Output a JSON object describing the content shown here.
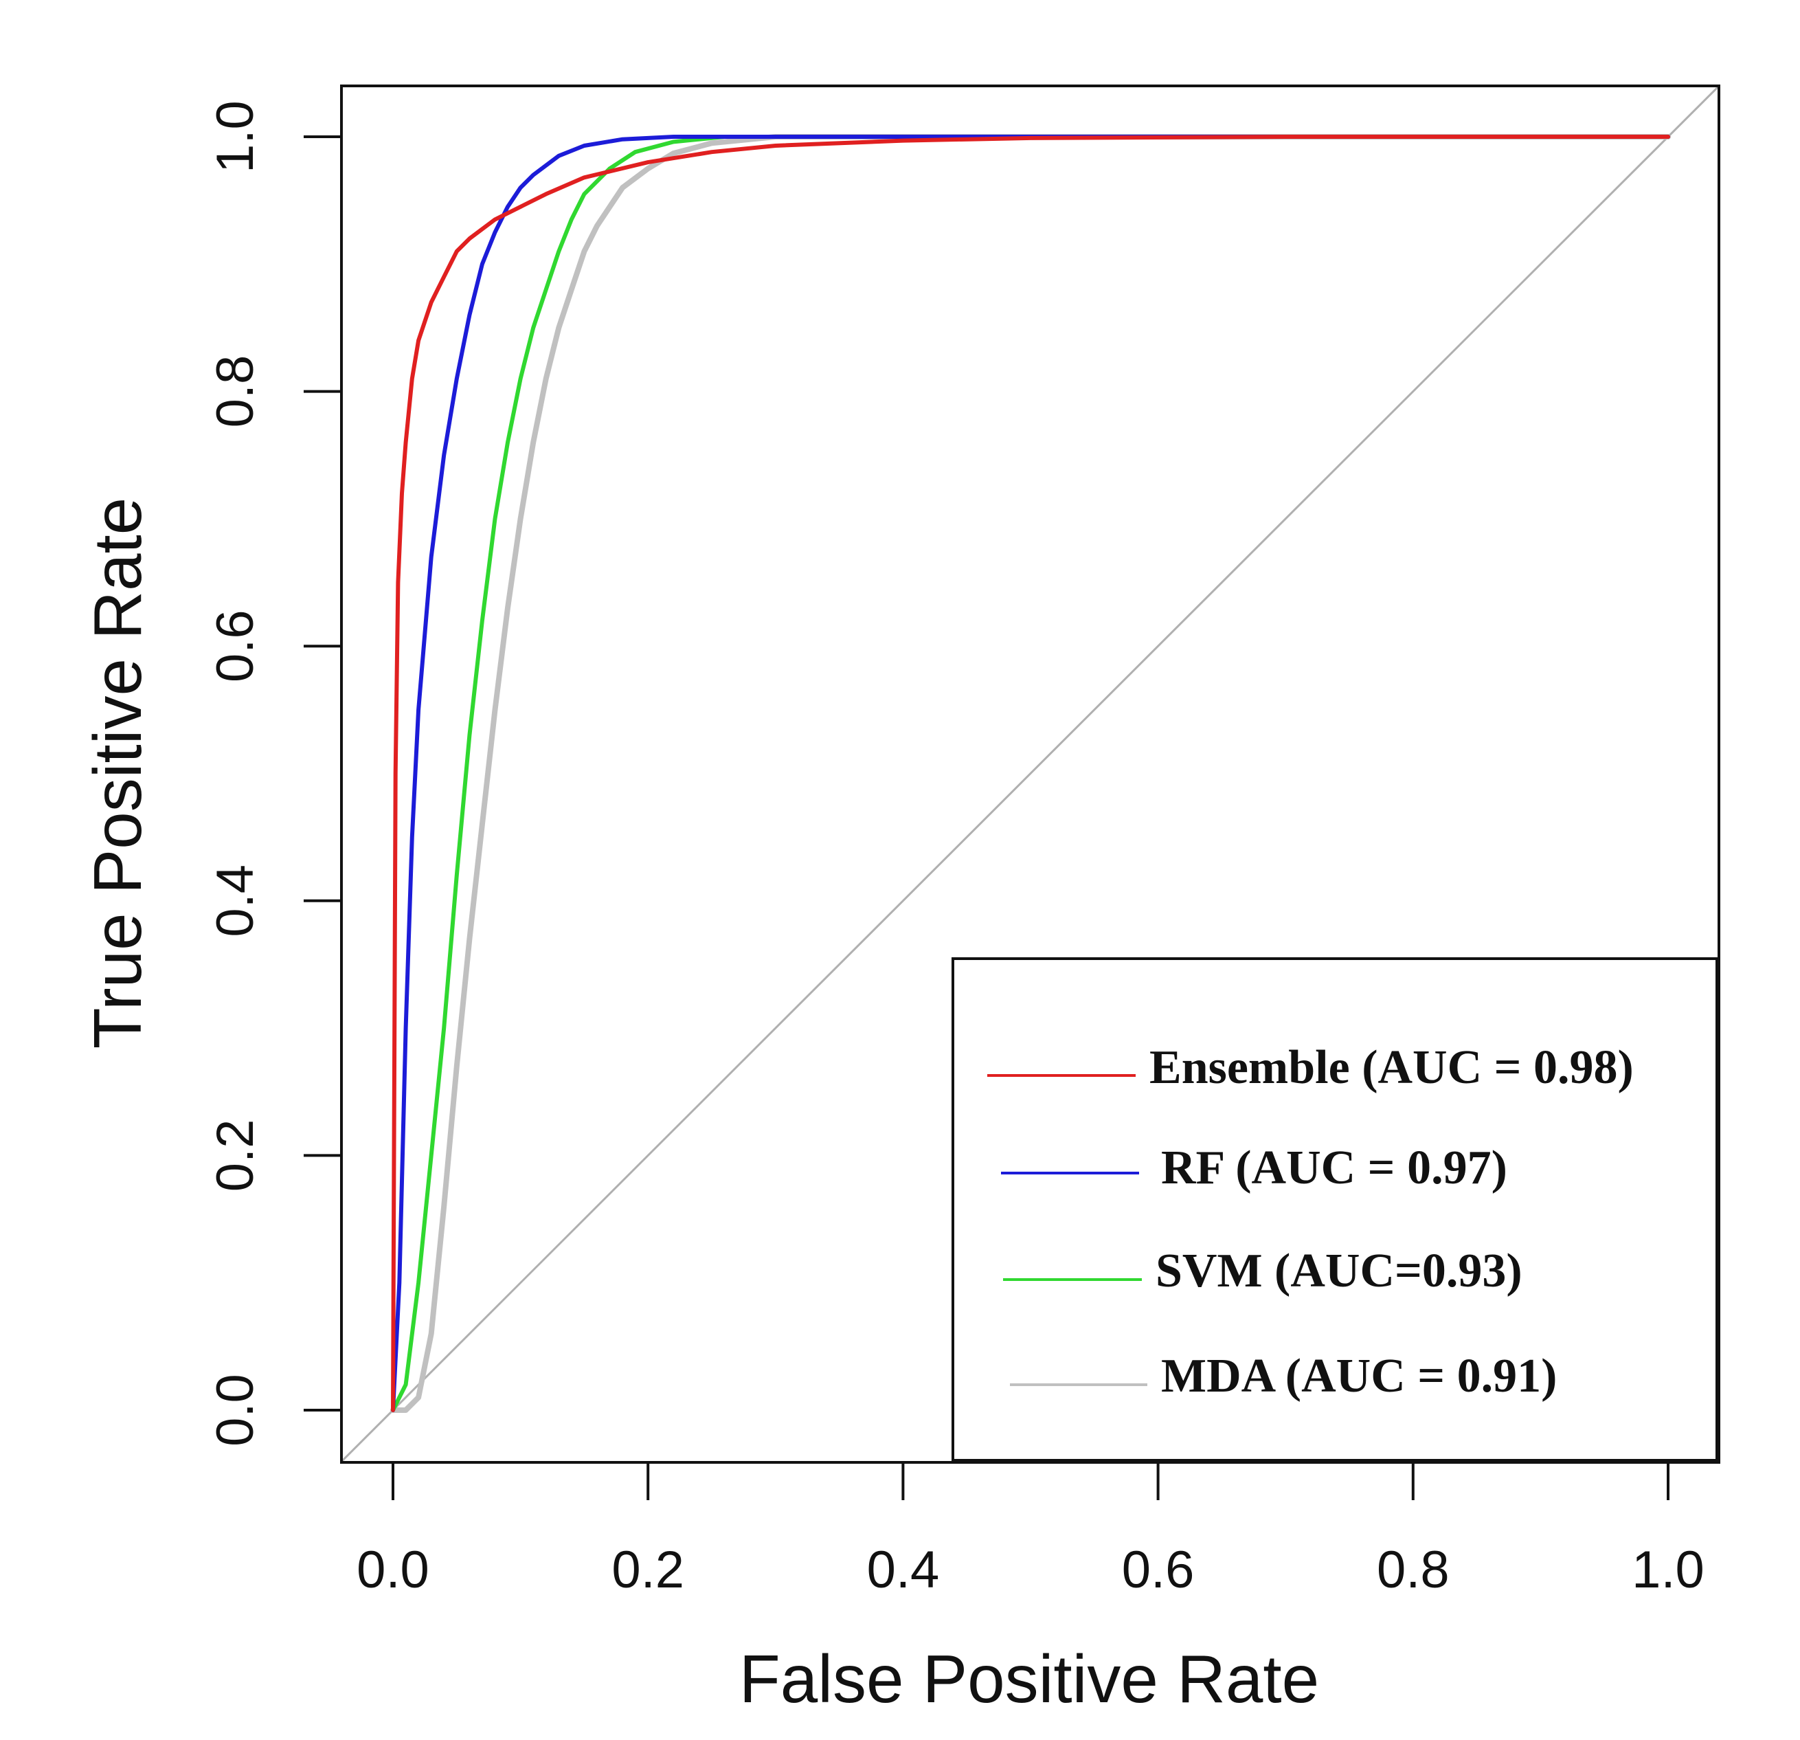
{
  "chart_data": {
    "type": "line",
    "title": "",
    "xlabel": "False Positive Rate",
    "ylabel": "True Positive Rate",
    "xlim": [
      -0.04,
      1.04
    ],
    "ylim": [
      -0.04,
      1.04
    ],
    "xticks": [
      0.0,
      0.2,
      0.4,
      0.6,
      0.8,
      1.0
    ],
    "yticks": [
      0.0,
      0.2,
      0.4,
      0.6,
      0.8,
      1.0
    ],
    "xtick_labels": [
      "0.0",
      "0.2",
      "0.4",
      "0.6",
      "0.8",
      "1.0"
    ],
    "ytick_labels": [
      "0.0",
      "0.2",
      "0.4",
      "0.6",
      "0.8",
      "1.0"
    ],
    "grid": false,
    "legend_position": "bottom-right",
    "reference_line": {
      "name": "chance",
      "color": "#b0b0b0",
      "points": [
        [
          -0.04,
          -0.04
        ],
        [
          1.04,
          1.04
        ]
      ]
    },
    "series": [
      {
        "name": "Ensemble",
        "label": "Ensemble (AUC = 0.98)",
        "color": "#e02020",
        "points": [
          [
            0,
            0
          ],
          [
            0.002,
            0.5
          ],
          [
            0.004,
            0.65
          ],
          [
            0.007,
            0.72
          ],
          [
            0.01,
            0.76
          ],
          [
            0.015,
            0.81
          ],
          [
            0.02,
            0.84
          ],
          [
            0.03,
            0.87
          ],
          [
            0.04,
            0.89
          ],
          [
            0.05,
            0.91
          ],
          [
            0.06,
            0.92
          ],
          [
            0.08,
            0.935
          ],
          [
            0.1,
            0.945
          ],
          [
            0.12,
            0.955
          ],
          [
            0.15,
            0.968
          ],
          [
            0.2,
            0.98
          ],
          [
            0.25,
            0.988
          ],
          [
            0.3,
            0.993
          ],
          [
            0.4,
            0.997
          ],
          [
            0.5,
            0.999
          ],
          [
            0.7,
            1.0
          ],
          [
            1.0,
            1.0
          ]
        ]
      },
      {
        "name": "RF",
        "label": "RF (AUC = 0.97)",
        "color": "#1c1cd8",
        "points": [
          [
            0,
            0
          ],
          [
            0.005,
            0.1
          ],
          [
            0.01,
            0.3
          ],
          [
            0.015,
            0.45
          ],
          [
            0.02,
            0.55
          ],
          [
            0.03,
            0.67
          ],
          [
            0.04,
            0.75
          ],
          [
            0.05,
            0.81
          ],
          [
            0.06,
            0.86
          ],
          [
            0.07,
            0.9
          ],
          [
            0.08,
            0.925
          ],
          [
            0.09,
            0.945
          ],
          [
            0.1,
            0.96
          ],
          [
            0.11,
            0.97
          ],
          [
            0.13,
            0.985
          ],
          [
            0.15,
            0.993
          ],
          [
            0.18,
            0.998
          ],
          [
            0.22,
            1.0
          ],
          [
            1.0,
            1.0
          ]
        ]
      },
      {
        "name": "SVM",
        "label": "SVM (AUC=0.93)",
        "color": "#30d830",
        "points": [
          [
            0,
            0
          ],
          [
            0.01,
            0.02
          ],
          [
            0.02,
            0.1
          ],
          [
            0.03,
            0.2
          ],
          [
            0.04,
            0.3
          ],
          [
            0.05,
            0.42
          ],
          [
            0.06,
            0.53
          ],
          [
            0.07,
            0.62
          ],
          [
            0.08,
            0.7
          ],
          [
            0.09,
            0.76
          ],
          [
            0.1,
            0.81
          ],
          [
            0.11,
            0.85
          ],
          [
            0.12,
            0.88
          ],
          [
            0.13,
            0.91
          ],
          [
            0.14,
            0.935
          ],
          [
            0.15,
            0.955
          ],
          [
            0.17,
            0.975
          ],
          [
            0.19,
            0.988
          ],
          [
            0.22,
            0.996
          ],
          [
            0.26,
            1.0
          ],
          [
            1.0,
            1.0
          ]
        ]
      },
      {
        "name": "MDA",
        "label": "MDA (AUC = 0.91)",
        "color": "#c0c0c0",
        "points": [
          [
            0,
            0
          ],
          [
            0.01,
            0.0
          ],
          [
            0.02,
            0.01
          ],
          [
            0.03,
            0.06
          ],
          [
            0.04,
            0.16
          ],
          [
            0.05,
            0.27
          ],
          [
            0.06,
            0.37
          ],
          [
            0.07,
            0.46
          ],
          [
            0.08,
            0.55
          ],
          [
            0.09,
            0.63
          ],
          [
            0.1,
            0.7
          ],
          [
            0.11,
            0.76
          ],
          [
            0.12,
            0.81
          ],
          [
            0.13,
            0.85
          ],
          [
            0.14,
            0.88
          ],
          [
            0.15,
            0.91
          ],
          [
            0.16,
            0.93
          ],
          [
            0.18,
            0.96
          ],
          [
            0.2,
            0.975
          ],
          [
            0.22,
            0.987
          ],
          [
            0.25,
            0.995
          ],
          [
            0.3,
            1.0
          ],
          [
            1.0,
            1.0
          ]
        ]
      }
    ]
  }
}
